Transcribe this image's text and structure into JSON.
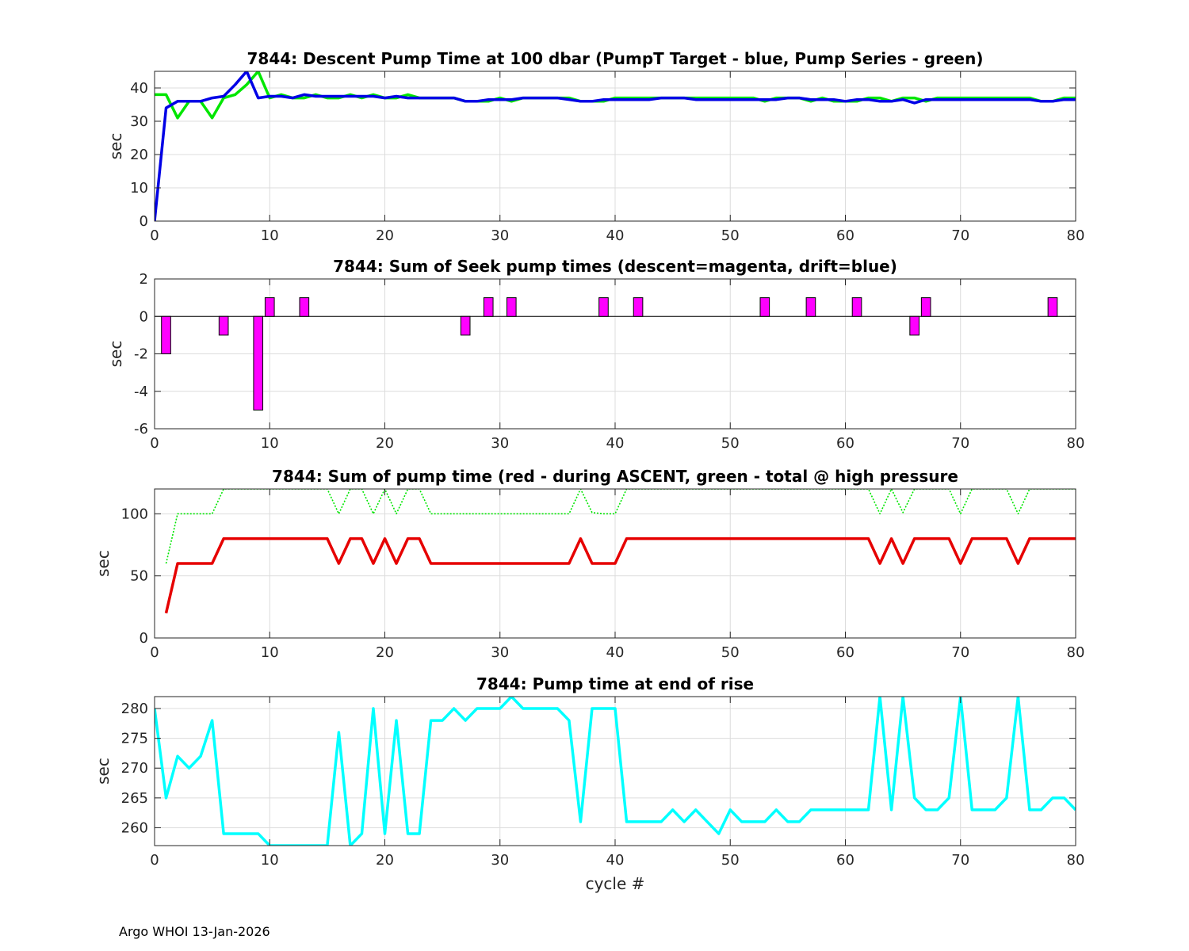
{
  "footer": "Argo WHOI 13-Jan-2026",
  "colors": {
    "green": "#00e600",
    "blue": "#0000e6",
    "magenta": "#ff00ff",
    "red": "#e60000",
    "cyan": "#00ffff",
    "grid": "#dcdcdc",
    "axis": "#262626"
  },
  "chart_data": [
    {
      "type": "line",
      "title": "7844: Descent Pump Time at 100 dbar (PumpT Target - blue, Pump Series - green)",
      "ylabel": "sec",
      "xlabel": "",
      "xlim": [
        0,
        80
      ],
      "ylim": [
        0,
        45
      ],
      "xticks": [
        0,
        10,
        20,
        30,
        40,
        50,
        60,
        70,
        80
      ],
      "yticks": [
        0,
        10,
        20,
        30,
        40
      ],
      "grid": true,
      "series": [
        {
          "name": "Pump Series",
          "color": "green",
          "style": "solid",
          "x": [
            0,
            1,
            2,
            3,
            4,
            5,
            6,
            7,
            8,
            9,
            10,
            11,
            12,
            13,
            14,
            15,
            16,
            17,
            18,
            19,
            20,
            21,
            22,
            23,
            24,
            25,
            26,
            27,
            28,
            29,
            30,
            31,
            32,
            33,
            34,
            35,
            36,
            37,
            38,
            39,
            40,
            41,
            42,
            43,
            44,
            45,
            46,
            47,
            48,
            49,
            50,
            51,
            52,
            53,
            54,
            55,
            56,
            57,
            58,
            59,
            60,
            61,
            62,
            63,
            64,
            65,
            66,
            67,
            68,
            69,
            70,
            71,
            72,
            73,
            74,
            75,
            76,
            77,
            78,
            79,
            80
          ],
          "y": [
            38,
            38,
            31,
            36,
            36,
            31,
            37,
            38,
            41,
            45,
            37,
            38,
            37,
            37,
            38,
            37,
            37,
            38,
            37,
            38,
            37,
            37,
            38,
            37,
            37,
            37,
            37,
            36,
            36,
            36,
            37,
            36,
            37,
            37,
            37,
            37,
            37,
            36,
            36,
            36,
            37,
            37,
            37,
            37,
            37,
            37,
            37,
            37,
            37,
            37,
            37,
            37,
            37,
            36,
            37,
            37,
            37,
            36,
            37,
            36,
            36,
            36,
            37,
            37,
            36,
            37,
            37,
            36,
            37,
            37,
            37,
            37,
            37,
            37,
            37,
            37,
            37,
            36,
            36,
            37,
            37
          ]
        },
        {
          "name": "PumpT Target",
          "color": "blue",
          "style": "solid",
          "x": [
            0,
            1,
            2,
            3,
            4,
            5,
            6,
            7,
            8,
            9,
            10,
            11,
            12,
            13,
            14,
            15,
            16,
            17,
            18,
            19,
            20,
            21,
            22,
            23,
            24,
            25,
            26,
            27,
            28,
            29,
            30,
            31,
            32,
            33,
            34,
            35,
            36,
            37,
            38,
            39,
            40,
            41,
            42,
            43,
            44,
            45,
            46,
            47,
            48,
            49,
            50,
            51,
            52,
            53,
            54,
            55,
            56,
            57,
            58,
            59,
            60,
            61,
            62,
            63,
            64,
            65,
            66,
            67,
            68,
            69,
            70,
            71,
            72,
            73,
            74,
            75,
            76,
            77,
            78,
            79,
            80
          ],
          "y": [
            0,
            34,
            36,
            36,
            36,
            37,
            37.5,
            41,
            45,
            37,
            37.5,
            37.5,
            37,
            38,
            37.5,
            37.5,
            37.5,
            37.5,
            37.5,
            37.5,
            37,
            37.5,
            37,
            37,
            37,
            37,
            37,
            36,
            36,
            36.5,
            36.5,
            36.5,
            37,
            37,
            37,
            37,
            36.5,
            36,
            36,
            36.5,
            36.5,
            36.5,
            36.5,
            36.5,
            37,
            37,
            37,
            36.5,
            36.5,
            36.5,
            36.5,
            36.5,
            36.5,
            36.5,
            36.5,
            37,
            37,
            36.5,
            36.5,
            36.5,
            36,
            36.5,
            36.5,
            36,
            36,
            36.5,
            35.5,
            36.5,
            36.5,
            36.5,
            36.5,
            36.5,
            36.5,
            36.5,
            36.5,
            36.5,
            36.5,
            36,
            36,
            36.5,
            36.5
          ]
        }
      ]
    },
    {
      "type": "bar",
      "title": "7844: Sum of Seek pump times (descent=magenta, drift=blue)",
      "ylabel": "sec",
      "xlabel": "",
      "xlim": [
        0,
        80
      ],
      "ylim": [
        -6,
        2
      ],
      "xticks": [
        0,
        10,
        20,
        30,
        40,
        50,
        60,
        70,
        80
      ],
      "yticks": [
        -6,
        -4,
        -2,
        0,
        2
      ],
      "grid": true,
      "series": [
        {
          "name": "descent",
          "color": "magenta",
          "x": [
            1,
            6,
            9,
            10,
            13,
            27,
            29,
            31,
            39,
            42,
            53,
            57,
            61,
            66,
            67,
            78
          ],
          "values": [
            -2,
            -1,
            -5,
            1,
            1,
            -1,
            1,
            1,
            1,
            1,
            1,
            1,
            1,
            -1,
            1,
            1
          ]
        }
      ]
    },
    {
      "type": "line",
      "title": "7844: Sum of pump time (red - during ASCENT, green - total @ high pressure",
      "ylabel": "sec",
      "xlabel": "",
      "xlim": [
        0,
        80
      ],
      "ylim": [
        0,
        120
      ],
      "xticks": [
        0,
        10,
        20,
        30,
        40,
        50,
        60,
        70,
        80
      ],
      "yticks": [
        0,
        50,
        100
      ],
      "grid": true,
      "series": [
        {
          "name": "total @ high pressure",
          "color": "green",
          "style": "dotted",
          "x": [
            1,
            2,
            3,
            4,
            5,
            6,
            7,
            8,
            9,
            10,
            11,
            12,
            13,
            14,
            15,
            16,
            17,
            18,
            19,
            20,
            21,
            22,
            23,
            24,
            25,
            26,
            27,
            28,
            29,
            30,
            31,
            32,
            33,
            34,
            35,
            36,
            37,
            38,
            39,
            40,
            41,
            42,
            43,
            44,
            45,
            46,
            47,
            48,
            49,
            50,
            51,
            52,
            53,
            54,
            55,
            56,
            57,
            58,
            59,
            60,
            61,
            62,
            63,
            64,
            65,
            66,
            67,
            68,
            69,
            70,
            71,
            72,
            73,
            74,
            75,
            76,
            77,
            78,
            79,
            80
          ],
          "y": [
            60,
            100,
            100,
            100,
            100,
            120,
            120,
            120,
            120,
            120,
            120,
            120,
            120,
            120,
            120,
            100,
            120,
            120,
            100,
            120,
            100,
            120,
            120,
            100,
            100,
            100,
            100,
            100,
            100,
            100,
            100,
            100,
            100,
            100,
            100,
            100,
            120,
            101,
            100,
            100,
            120,
            120,
            120,
            120,
            120,
            120,
            120,
            120,
            120,
            120,
            120,
            120,
            120,
            120,
            120,
            120,
            120,
            120,
            120,
            120,
            120,
            120,
            100,
            120,
            101,
            120,
            120,
            120,
            120,
            100,
            120,
            120,
            120,
            120,
            100,
            120,
            120,
            120,
            120,
            120
          ]
        },
        {
          "name": "during ASCENT",
          "color": "red",
          "style": "solid",
          "x": [
            1,
            2,
            3,
            4,
            5,
            6,
            7,
            8,
            9,
            10,
            11,
            12,
            13,
            14,
            15,
            16,
            17,
            18,
            19,
            20,
            21,
            22,
            23,
            24,
            25,
            26,
            27,
            28,
            29,
            30,
            31,
            32,
            33,
            34,
            35,
            36,
            37,
            38,
            39,
            40,
            41,
            42,
            43,
            44,
            45,
            46,
            47,
            48,
            49,
            50,
            51,
            52,
            53,
            54,
            55,
            56,
            57,
            58,
            59,
            60,
            61,
            62,
            63,
            64,
            65,
            66,
            67,
            68,
            69,
            70,
            71,
            72,
            73,
            74,
            75,
            76,
            77,
            78,
            79,
            80
          ],
          "y": [
            20,
            60,
            60,
            60,
            60,
            80,
            80,
            80,
            80,
            80,
            80,
            80,
            80,
            80,
            80,
            60,
            80,
            80,
            60,
            80,
            60,
            80,
            80,
            60,
            60,
            60,
            60,
            60,
            60,
            60,
            60,
            60,
            60,
            60,
            60,
            60,
            80,
            60,
            60,
            60,
            80,
            80,
            80,
            80,
            80,
            80,
            80,
            80,
            80,
            80,
            80,
            80,
            80,
            80,
            80,
            80,
            80,
            80,
            80,
            80,
            80,
            80,
            60,
            80,
            60,
            80,
            80,
            80,
            80,
            60,
            80,
            80,
            80,
            80,
            60,
            80,
            80,
            80,
            80,
            80
          ]
        }
      ]
    },
    {
      "type": "line",
      "title": "7844: Pump time at end of rise",
      "ylabel": "sec",
      "xlabel": "cycle #",
      "xlim": [
        0,
        80
      ],
      "ylim": [
        257,
        282
      ],
      "xticks": [
        0,
        10,
        20,
        30,
        40,
        50,
        60,
        70,
        80
      ],
      "yticks": [
        260,
        265,
        270,
        275,
        280
      ],
      "grid": true,
      "series": [
        {
          "name": "",
          "color": "cyan",
          "style": "solid",
          "x": [
            0,
            1,
            2,
            3,
            4,
            5,
            6,
            7,
            8,
            9,
            10,
            11,
            12,
            13,
            14,
            15,
            16,
            17,
            18,
            19,
            20,
            21,
            22,
            23,
            24,
            25,
            26,
            27,
            28,
            29,
            30,
            31,
            32,
            33,
            34,
            35,
            36,
            37,
            38,
            39,
            40,
            41,
            42,
            43,
            44,
            45,
            46,
            47,
            48,
            49,
            50,
            51,
            52,
            53,
            54,
            55,
            56,
            57,
            58,
            59,
            60,
            61,
            62,
            63,
            64,
            65,
            66,
            67,
            68,
            69,
            70,
            71,
            72,
            73,
            74,
            75,
            76,
            77,
            78,
            79,
            80
          ],
          "y": [
            280,
            265,
            272,
            270,
            272,
            278,
            259,
            259,
            259,
            259,
            257,
            257,
            257,
            257,
            257,
            257,
            276,
            257,
            259,
            280,
            259,
            278,
            259,
            259,
            278,
            278,
            280,
            278,
            280,
            280,
            280,
            282,
            280,
            280,
            280,
            280,
            278,
            261,
            280,
            280,
            280,
            261,
            261,
            261,
            261,
            263,
            261,
            263,
            261,
            259,
            263,
            261,
            261,
            261,
            263,
            261,
            261,
            263,
            263,
            263,
            263,
            263,
            263,
            282,
            263,
            282,
            265,
            263,
            263,
            265,
            282,
            263,
            263,
            263,
            265,
            282,
            263,
            263,
            265,
            265,
            263
          ]
        }
      ]
    }
  ]
}
